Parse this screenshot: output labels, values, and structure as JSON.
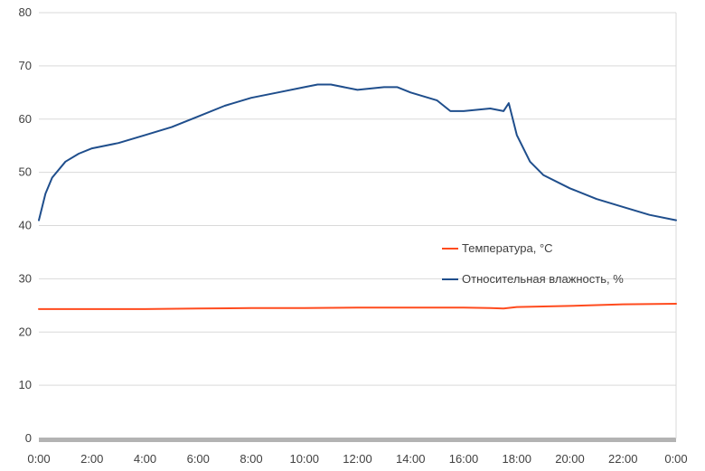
{
  "chart_data": {
    "type": "line",
    "title": "",
    "xlabel": "",
    "ylabel": "",
    "ylim": [
      0,
      80
    ],
    "yticks": [
      "0",
      "10",
      "20",
      "30",
      "40",
      "50",
      "60",
      "70",
      "80"
    ],
    "xticks": [
      "0:00",
      "2:00",
      "4:00",
      "6:00",
      "8:00",
      "10:00",
      "12:00",
      "14:00",
      "16:00",
      "18:00",
      "20:00",
      "22:00",
      "0:00"
    ],
    "xlim_hours": [
      0,
      24
    ],
    "grid": "horizontal",
    "legend_position": "right-middle",
    "series": [
      {
        "name": "Температура, °C",
        "color": "#ff4b1e",
        "x_hours": [
          0,
          2,
          4,
          6,
          8,
          10,
          12,
          14,
          16,
          17,
          17.5,
          18,
          19,
          20,
          22,
          24
        ],
        "values": [
          24.3,
          24.3,
          24.3,
          24.4,
          24.5,
          24.5,
          24.6,
          24.6,
          24.6,
          24.5,
          24.4,
          24.7,
          24.8,
          24.9,
          25.2,
          25.3
        ]
      },
      {
        "name": "Относительная влажность, %",
        "color": "#1f4e8c",
        "x_hours": [
          0,
          0.25,
          0.5,
          1,
          1.5,
          2,
          3,
          4,
          5,
          6,
          7,
          8,
          9,
          10,
          10.5,
          11,
          12,
          13,
          13.5,
          14,
          15,
          15.5,
          16,
          17,
          17.5,
          17.7,
          18,
          18.5,
          19,
          20,
          21,
          22,
          23,
          24
        ],
        "values": [
          41,
          46,
          49,
          52,
          53.5,
          54.5,
          55.5,
          57,
          58.5,
          60.5,
          62.5,
          64,
          65,
          66,
          66.5,
          66.5,
          65.5,
          66,
          66,
          65,
          63.5,
          61.5,
          61.5,
          62,
          61.5,
          63,
          57,
          52,
          49.5,
          47,
          45,
          43.5,
          42,
          41
        ]
      }
    ]
  }
}
